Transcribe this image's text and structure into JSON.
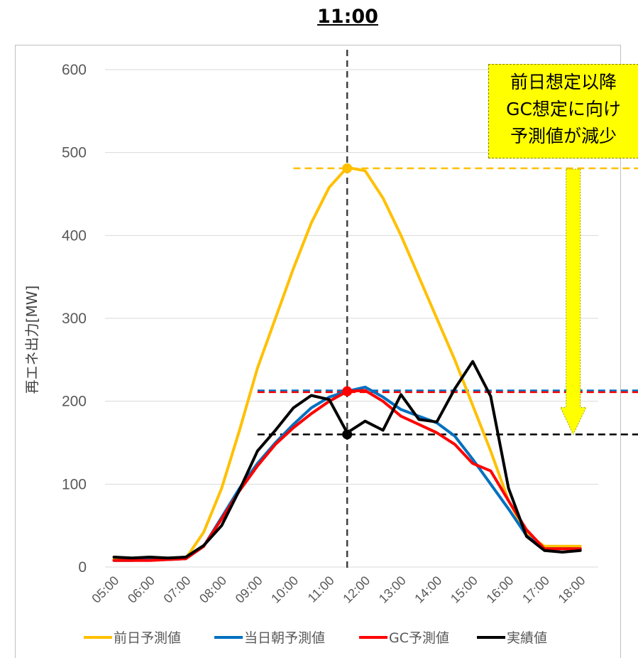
{
  "title": "11:00",
  "callout": {
    "lines": [
      "前日想定以降",
      "GC想定に向け",
      "予測値が減少"
    ]
  },
  "chart_data": {
    "type": "line",
    "ylabel": "再エネ出力[MW]",
    "ylim": [
      0,
      600
    ],
    "yticks": [
      0,
      100,
      200,
      300,
      400,
      500,
      600
    ],
    "xtick_labels": [
      "05:00",
      "06:00",
      "07:00",
      "08:00",
      "09:00",
      "10:00",
      "11:00",
      "12:00",
      "13:00",
      "14:00",
      "15:00",
      "16:00",
      "17:00",
      "18:00"
    ],
    "x": [
      5.0,
      5.5,
      6.0,
      6.5,
      7.0,
      7.5,
      8.0,
      8.5,
      9.0,
      9.5,
      10.0,
      10.5,
      11.0,
      11.5,
      12.0,
      12.5,
      13.0,
      13.5,
      14.0,
      14.5,
      15.0,
      15.5,
      16.0,
      16.5,
      17.0,
      17.5,
      18.0
    ],
    "series": [
      {
        "name": "前日予測値",
        "color": "#FFC000",
        "values": [
          10,
          10,
          10,
          10,
          10,
          42,
          95,
          165,
          240,
          300,
          360,
          415,
          458,
          482,
          478,
          445,
          400,
          350,
          300,
          250,
          195,
          140,
          80,
          40,
          25,
          25,
          25
        ]
      },
      {
        "name": "当日朝予測値",
        "color": "#0070C0",
        "values": [
          8,
          8,
          9,
          9,
          10,
          25,
          60,
          95,
          125,
          150,
          172,
          192,
          205,
          212,
          217,
          205,
          190,
          182,
          174,
          158,
          130,
          100,
          70,
          38,
          22,
          22,
          22
        ]
      },
      {
        "name": "GC予測値",
        "color": "#FF0000",
        "values": [
          8,
          8,
          8,
          9,
          10,
          25,
          58,
          92,
          122,
          148,
          168,
          185,
          200,
          212,
          213,
          200,
          182,
          172,
          162,
          148,
          125,
          116,
          80,
          45,
          22,
          22,
          22
        ]
      },
      {
        "name": "実績値",
        "color": "#000000",
        "values": [
          12,
          11,
          12,
          11,
          12,
          26,
          50,
          93,
          140,
          165,
          192,
          207,
          202,
          162,
          176,
          165,
          208,
          178,
          175,
          215,
          248,
          206,
          95,
          37,
          20,
          18,
          20
        ]
      }
    ],
    "annotations": [
      {
        "type": "vline",
        "x": 11.5,
        "color": "#404040"
      },
      {
        "type": "hline",
        "y": 481,
        "x0": 10.0,
        "x1": 18.5,
        "color": "#FFC000"
      },
      {
        "type": "hline",
        "y": 213,
        "x0": 9.0,
        "x1": 18.5,
        "color": "#0070C0"
      },
      {
        "type": "hline",
        "y": 211,
        "x0": 9.0,
        "x1": 18.5,
        "color": "#FF0000"
      },
      {
        "type": "hline",
        "y": 160,
        "x0": 9.0,
        "x1": 18.5,
        "color": "#000000"
      },
      {
        "type": "point",
        "x": 11.5,
        "y": 481,
        "color": "#FFC000"
      },
      {
        "type": "point",
        "x": 11.5,
        "y": 212,
        "color": "#FF0000"
      },
      {
        "type": "point",
        "x": 11.5,
        "y": 160,
        "color": "#000000"
      },
      {
        "type": "arrow",
        "x": 18.0,
        "y_from": 480,
        "y_to": 160,
        "color": "#FFFF00"
      }
    ],
    "legend_position": "bottom",
    "grid": true
  }
}
